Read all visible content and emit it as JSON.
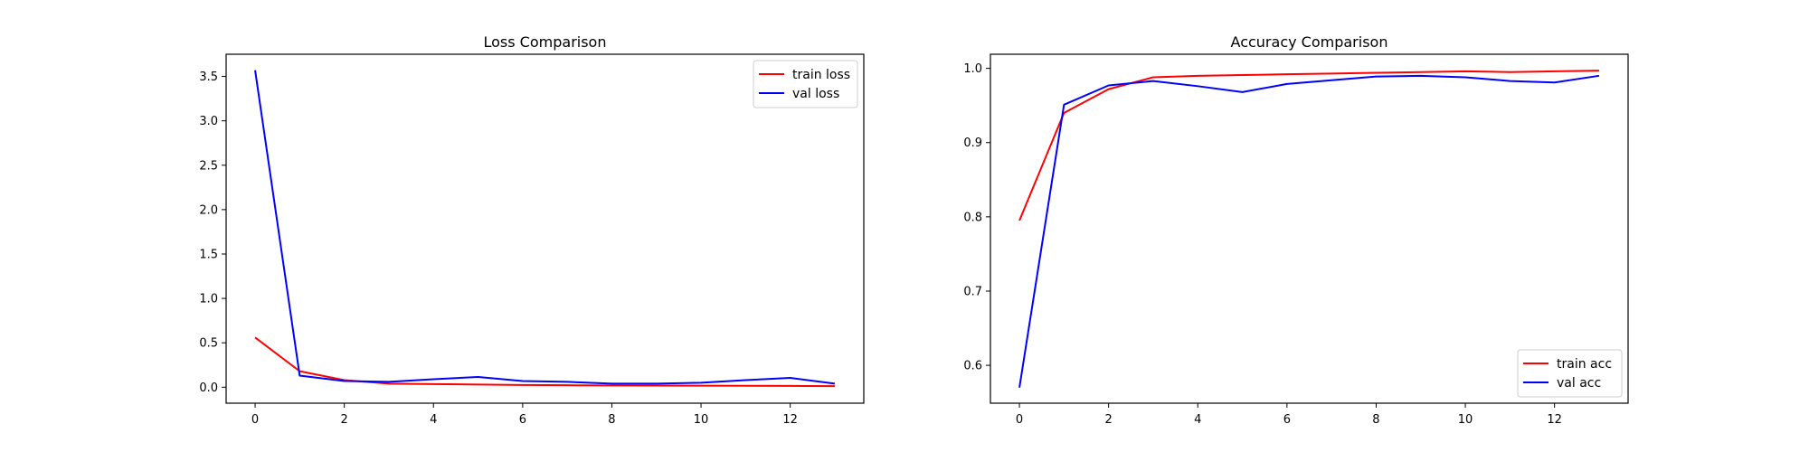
{
  "chart_data": [
    {
      "type": "line",
      "title": "Loss Comparison",
      "xlabel": "",
      "ylabel": "",
      "xlim": [
        -0.65,
        13.65
      ],
      "ylim": [
        -0.18,
        3.75
      ],
      "xticks": [
        0,
        2,
        4,
        6,
        8,
        10,
        12
      ],
      "yticks": [
        0.0,
        0.5,
        1.0,
        1.5,
        2.0,
        2.5,
        3.0,
        3.5
      ],
      "legend_position": "top-right",
      "grid": false,
      "x": [
        0,
        1,
        2,
        3,
        4,
        5,
        6,
        7,
        8,
        9,
        10,
        11,
        12,
        13
      ],
      "series": [
        {
          "name": "train loss",
          "color": "#ff0000",
          "values": [
            0.56,
            0.18,
            0.08,
            0.04,
            0.035,
            0.03,
            0.025,
            0.022,
            0.02,
            0.018,
            0.017,
            0.016,
            0.015,
            0.012
          ]
        },
        {
          "name": "val loss",
          "color": "#0000ff",
          "values": [
            3.57,
            0.13,
            0.07,
            0.06,
            0.09,
            0.115,
            0.07,
            0.06,
            0.04,
            0.04,
            0.05,
            0.08,
            0.105,
            0.04
          ]
        }
      ]
    },
    {
      "type": "line",
      "title": "Accuracy Comparison",
      "xlabel": "",
      "ylabel": "",
      "xlim": [
        -0.65,
        13.65
      ],
      "ylim": [
        0.549,
        1.019
      ],
      "xticks": [
        0,
        2,
        4,
        6,
        8,
        10,
        12
      ],
      "yticks": [
        0.6,
        0.7,
        0.8,
        0.9,
        1.0
      ],
      "legend_position": "bottom-right",
      "grid": false,
      "x": [
        0,
        1,
        2,
        3,
        4,
        5,
        6,
        7,
        8,
        9,
        10,
        11,
        12,
        13
      ],
      "series": [
        {
          "name": "train acc",
          "color": "#ff0000",
          "values": [
            0.795,
            0.94,
            0.972,
            0.988,
            0.99,
            0.991,
            0.992,
            0.993,
            0.994,
            0.995,
            0.996,
            0.995,
            0.996,
            0.997
          ]
        },
        {
          "name": "val acc",
          "color": "#0000ff",
          "values": [
            0.57,
            0.951,
            0.977,
            0.983,
            0.976,
            0.968,
            0.979,
            0.984,
            0.989,
            0.99,
            0.988,
            0.983,
            0.981,
            0.99
          ]
        }
      ]
    }
  ]
}
